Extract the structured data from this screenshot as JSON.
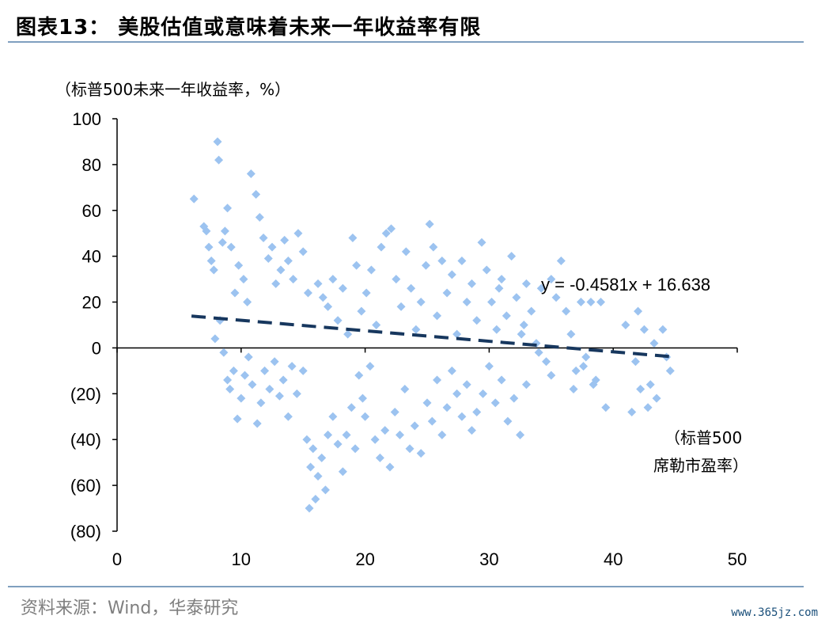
{
  "header": {
    "title": "图表13：  美股估值或意味着未来一年收益率有限"
  },
  "footer": {
    "source": "资料来源：Wind，华泰研究",
    "watermark": "www.365jz.com"
  },
  "chart_data": {
    "type": "scatter",
    "ylabel": "（标普500未来一年收益率，%）",
    "xlabel_line1": "（标普500",
    "xlabel_line2": "席勒市盈率）",
    "xlim": [
      0,
      50
    ],
    "ylim": [
      -80,
      100
    ],
    "xticks": [
      0,
      10,
      20,
      30,
      40,
      50
    ],
    "yticks": [
      100,
      80,
      60,
      40,
      20,
      0,
      -20,
      -40,
      -60,
      -80
    ],
    "ytick_labels": [
      "100",
      "80",
      "60",
      "40",
      "20",
      "0",
      "(20)",
      "(40)",
      "(60)",
      "(80)"
    ],
    "point_color": "#9cc3f0",
    "trendline": {
      "equation": "y = -0.4581x + 16.638",
      "slope": -0.4581,
      "intercept": 16.638,
      "x_range": [
        6,
        44.5
      ],
      "color": "#17375e"
    },
    "points": [
      [
        6.2,
        65
      ],
      [
        7.0,
        53
      ],
      [
        7.2,
        51
      ],
      [
        7.4,
        44
      ],
      [
        7.6,
        38
      ],
      [
        7.8,
        34
      ],
      [
        8.1,
        90
      ],
      [
        8.2,
        82
      ],
      [
        8.5,
        46
      ],
      [
        8.7,
        51
      ],
      [
        8.9,
        61
      ],
      [
        9.2,
        44
      ],
      [
        9.5,
        24
      ],
      [
        9.8,
        36
      ],
      [
        10.2,
        30
      ],
      [
        10.5,
        20
      ],
      [
        10.8,
        76
      ],
      [
        11.2,
        67
      ],
      [
        11.5,
        57
      ],
      [
        11.8,
        48
      ],
      [
        12.2,
        39
      ],
      [
        12.5,
        44
      ],
      [
        12.8,
        28
      ],
      [
        13.2,
        34
      ],
      [
        13.5,
        47
      ],
      [
        13.8,
        38
      ],
      [
        14.2,
        30
      ],
      [
        14.6,
        50
      ],
      [
        15.0,
        42
      ],
      [
        15.4,
        24
      ],
      [
        7.9,
        4
      ],
      [
        8.3,
        12
      ],
      [
        8.6,
        -2
      ],
      [
        8.9,
        -14
      ],
      [
        9.1,
        -18
      ],
      [
        9.4,
        -10
      ],
      [
        9.7,
        -31
      ],
      [
        10.0,
        -22
      ],
      [
        10.3,
        -12
      ],
      [
        10.6,
        -4
      ],
      [
        10.9,
        -16
      ],
      [
        11.3,
        -33
      ],
      [
        11.6,
        -24
      ],
      [
        11.9,
        -10
      ],
      [
        12.3,
        -18
      ],
      [
        12.7,
        -6
      ],
      [
        13.1,
        -21
      ],
      [
        13.4,
        -14
      ],
      [
        13.8,
        -30
      ],
      [
        14.1,
        -8
      ],
      [
        14.5,
        -20
      ],
      [
        15.0,
        -10
      ],
      [
        15.3,
        -40
      ],
      [
        15.6,
        -52
      ],
      [
        15.8,
        -44
      ],
      [
        15.5,
        -70
      ],
      [
        16.0,
        -66
      ],
      [
        16.2,
        -56
      ],
      [
        16.5,
        -48
      ],
      [
        16.8,
        -62
      ],
      [
        17.0,
        -38
      ],
      [
        17.4,
        -30
      ],
      [
        17.8,
        -42
      ],
      [
        18.2,
        -54
      ],
      [
        18.5,
        -38
      ],
      [
        18.9,
        -26
      ],
      [
        19.2,
        -44
      ],
      [
        19.5,
        -12
      ],
      [
        19.8,
        -22
      ],
      [
        20.0,
        -30
      ],
      [
        20.4,
        -8
      ],
      [
        20.8,
        -40
      ],
      [
        21.2,
        -48
      ],
      [
        21.6,
        -36
      ],
      [
        22.0,
        -52
      ],
      [
        22.4,
        -28
      ],
      [
        22.8,
        -38
      ],
      [
        23.2,
        -18
      ],
      [
        23.6,
        -44
      ],
      [
        24.0,
        -34
      ],
      [
        24.5,
        -46
      ],
      [
        25.0,
        -24
      ],
      [
        25.4,
        -32
      ],
      [
        25.8,
        -14
      ],
      [
        26.2,
        -38
      ],
      [
        26.6,
        -26
      ],
      [
        27.0,
        -10
      ],
      [
        27.4,
        -20
      ],
      [
        27.8,
        -30
      ],
      [
        28.2,
        -16
      ],
      [
        28.6,
        -36
      ],
      [
        29.0,
        -28
      ],
      [
        29.5,
        -20
      ],
      [
        30.0,
        -8
      ],
      [
        30.5,
        -24
      ],
      [
        31.0,
        -14
      ],
      [
        31.5,
        -32
      ],
      [
        32.0,
        -22
      ],
      [
        32.5,
        -38
      ],
      [
        33.0,
        -16
      ],
      [
        16.2,
        28
      ],
      [
        16.6,
        22
      ],
      [
        17.0,
        18
      ],
      [
        17.4,
        30
      ],
      [
        17.8,
        12
      ],
      [
        18.2,
        26
      ],
      [
        18.6,
        6
      ],
      [
        19.0,
        48
      ],
      [
        19.3,
        36
      ],
      [
        19.7,
        16
      ],
      [
        20.1,
        24
      ],
      [
        20.5,
        34
      ],
      [
        20.9,
        10
      ],
      [
        21.3,
        44
      ],
      [
        21.7,
        50
      ],
      [
        22.1,
        52
      ],
      [
        22.5,
        30
      ],
      [
        22.9,
        18
      ],
      [
        23.3,
        42
      ],
      [
        23.7,
        26
      ],
      [
        24.1,
        8
      ],
      [
        24.5,
        20
      ],
      [
        24.9,
        36
      ],
      [
        25.2,
        54
      ],
      [
        25.5,
        44
      ],
      [
        25.8,
        14
      ],
      [
        26.2,
        38
      ],
      [
        26.6,
        24
      ],
      [
        27.0,
        32
      ],
      [
        27.4,
        6
      ],
      [
        27.8,
        38
      ],
      [
        28.2,
        20
      ],
      [
        28.6,
        28
      ],
      [
        29.0,
        12
      ],
      [
        29.4,
        46
      ],
      [
        29.8,
        34
      ],
      [
        30.2,
        20
      ],
      [
        30.6,
        8
      ],
      [
        31.0,
        30
      ],
      [
        31.4,
        14
      ],
      [
        31.8,
        40
      ],
      [
        32.2,
        22
      ],
      [
        32.6,
        6
      ],
      [
        33.0,
        28
      ],
      [
        33.4,
        16
      ],
      [
        33.8,
        2
      ],
      [
        34.2,
        26
      ],
      [
        34.6,
        -6
      ],
      [
        35.0,
        -12
      ],
      [
        35.4,
        22
      ],
      [
        35.8,
        38
      ],
      [
        36.2,
        16
      ],
      [
        36.6,
        6
      ],
      [
        37.0,
        -10
      ],
      [
        37.4,
        20
      ],
      [
        37.8,
        -4
      ],
      [
        38.2,
        20
      ],
      [
        38.6,
        -14
      ],
      [
        39.0,
        20
      ],
      [
        39.4,
        -26
      ],
      [
        41.0,
        10
      ],
      [
        41.5,
        -28
      ],
      [
        42.0,
        16
      ],
      [
        42.5,
        8
      ],
      [
        43.0,
        -16
      ],
      [
        43.5,
        -22
      ],
      [
        44.0,
        8
      ],
      [
        44.3,
        -4
      ],
      [
        44.6,
        -10
      ],
      [
        42.8,
        -26
      ],
      [
        41.8,
        -6
      ],
      [
        42.2,
        -18
      ],
      [
        43.3,
        2
      ],
      [
        36.8,
        -18
      ],
      [
        37.6,
        -8
      ],
      [
        38.4,
        -16
      ],
      [
        32.8,
        10
      ],
      [
        34.0,
        -2
      ],
      [
        35.0,
        30
      ],
      [
        30.8,
        26
      ]
    ]
  }
}
